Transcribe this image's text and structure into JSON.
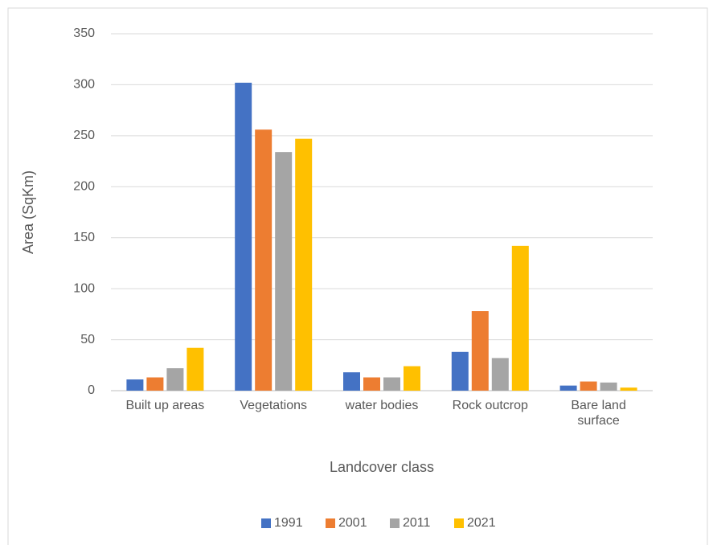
{
  "chart_data": {
    "type": "bar",
    "x_label": "Landcover class",
    "y_label": "Area (SqKm)",
    "categories": [
      "Built up areas",
      "Vegetations",
      "water bodies",
      "Rock outcrop",
      "Bare land surface"
    ],
    "series": [
      {
        "name": "1991",
        "color": "#4472c4",
        "values": [
          11,
          302,
          18,
          38,
          5
        ]
      },
      {
        "name": "2001",
        "color": "#ed7d31",
        "values": [
          13,
          256,
          13,
          78,
          9
        ]
      },
      {
        "name": "2011",
        "color": "#a5a5a5",
        "values": [
          22,
          234,
          13,
          32,
          8
        ]
      },
      {
        "name": "2021",
        "color": "#ffc000",
        "values": [
          42,
          247,
          24,
          142,
          3
        ]
      }
    ],
    "ylim": [
      0,
      350
    ],
    "yticks": [
      0,
      50,
      100,
      150,
      200,
      250,
      300,
      350
    ],
    "grid": true,
    "legend": "bottom"
  }
}
